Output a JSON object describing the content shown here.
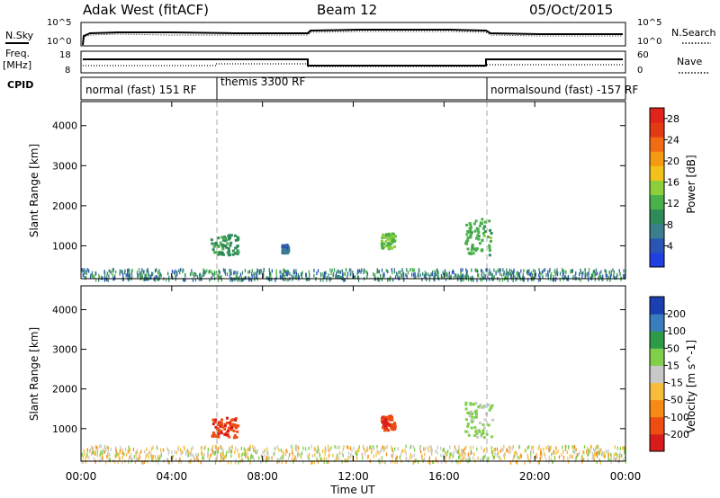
{
  "header": {
    "station": "Adak West (fitACF)",
    "beam": "Beam 12",
    "date": "05/Oct/2015"
  },
  "noise_panel": {
    "left_label": "N.Sky",
    "right_label": "N.Search",
    "left_ticks": [
      "10^5",
      "10^0"
    ],
    "right_ticks": [
      "10^5",
      "10^0"
    ]
  },
  "freq_panel": {
    "left_label_line1": "Freq.",
    "left_label_line2": "[MHz]",
    "right_label": "Nave",
    "left_ticks": [
      "18",
      "8"
    ],
    "right_ticks": [
      "60",
      "0"
    ]
  },
  "cpid": {
    "label": "CPID",
    "modes": [
      {
        "name": "normal (fast) 151 RF",
        "start": "00:00",
        "end": "06:00"
      },
      {
        "name": "themis 3300 RF",
        "start": "06:00",
        "end": "18:00"
      },
      {
        "name": "normalsound (fast) -157 RF",
        "start": "18:00",
        "end": "24:00"
      }
    ]
  },
  "x_axis": {
    "label": "Time UT",
    "ticks": [
      "00:00",
      "04:00",
      "08:00",
      "12:00",
      "16:00",
      "20:00",
      "00:00"
    ]
  },
  "colors": {
    "power": [
      "#1f3fe0",
      "#2a55b5",
      "#3b7f8c",
      "#2e8b57",
      "#49b04a",
      "#8ccf3a",
      "#f2c21b",
      "#f59a12",
      "#f36a14",
      "#e23b13",
      "#e0241b"
    ],
    "velocity": [
      "#d81b1b",
      "#ee4d12",
      "#f68a14",
      "#f6bd3a",
      "#c8c8c8",
      "#7fcf4a",
      "#2e9b47",
      "#3a7dbd",
      "#1a3fb0"
    ]
  },
  "chart_data": [
    {
      "type": "heatmap",
      "panel": "power",
      "ylabel": "Slant Range [km]",
      "xlabel": "Time UT",
      "y_ticks": [
        "1000",
        "2000",
        "3000",
        "4000"
      ],
      "ylim": [
        180,
        4600
      ],
      "xlim_hours": [
        0,
        24
      ],
      "colorbar": {
        "label": "Power [dB]",
        "ticks": [
          "4",
          "8",
          "12",
          "16",
          "20",
          "24",
          "28"
        ],
        "range": [
          0,
          30
        ]
      },
      "features": [
        {
          "desc": "ground scatter band",
          "t_start": 0,
          "t_end": 24,
          "r_min": 180,
          "r_max": 450,
          "value": 8
        },
        {
          "desc": "echo patch",
          "t_start": 5.7,
          "t_end": 6.9,
          "r_min": 800,
          "r_max": 1300,
          "value": 10
        },
        {
          "desc": "echo patch",
          "t_start": 13.2,
          "t_end": 13.8,
          "r_min": 950,
          "r_max": 1350,
          "value": 14
        },
        {
          "desc": "echo patch",
          "t_start": 16.9,
          "t_end": 18.1,
          "r_min": 800,
          "r_max": 1700,
          "value": 12
        },
        {
          "desc": "echo patch",
          "t_start": 8.8,
          "t_end": 9.1,
          "r_min": 850,
          "r_max": 1050,
          "value": 6
        }
      ]
    },
    {
      "type": "heatmap",
      "panel": "velocity",
      "ylabel": "Slant Range [km]",
      "xlabel": "Time UT",
      "y_ticks": [
        "1000",
        "2000",
        "3000",
        "4000"
      ],
      "ylim": [
        180,
        4600
      ],
      "xlim_hours": [
        0,
        24
      ],
      "colorbar": {
        "label": "Velocity [m s^-1]",
        "ticks": [
          "200",
          "100",
          "50",
          "15",
          "-15",
          "-50",
          "-100",
          "-200"
        ],
        "range": [
          -250,
          250
        ]
      },
      "features": [
        {
          "desc": "ground scatter band",
          "t_start": 0,
          "t_end": 24,
          "r_min": 180,
          "r_max": 600,
          "value": -20
        },
        {
          "desc": "echo patch",
          "t_start": 5.7,
          "t_end": 6.9,
          "r_min": 800,
          "r_max": 1300,
          "value": -180
        },
        {
          "desc": "echo patch",
          "t_start": 13.2,
          "t_end": 13.8,
          "r_min": 950,
          "r_max": 1350,
          "value": -180
        },
        {
          "desc": "echo patch",
          "t_start": 16.9,
          "t_end": 18.1,
          "r_min": 800,
          "r_max": 1700,
          "value": 40
        }
      ]
    }
  ]
}
